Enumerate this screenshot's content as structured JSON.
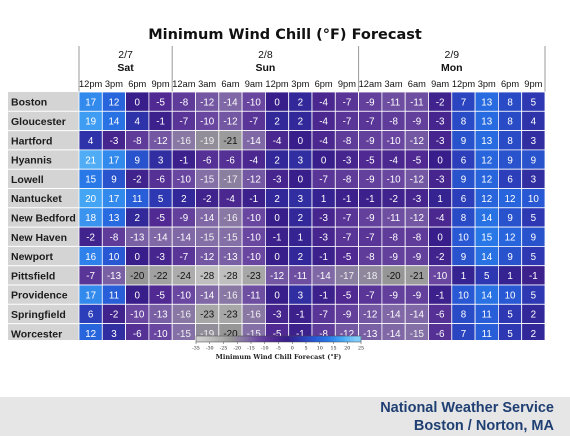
{
  "chart_data": {
    "type": "heatmap",
    "title": "Minimum Wind Chill (°F) Forecast",
    "days": [
      {
        "date": "2/7",
        "name": "Sat",
        "span": 4
      },
      {
        "date": "2/8",
        "name": "Sun",
        "span": 8
      },
      {
        "date": "2/9",
        "name": "Mon",
        "span": 8
      }
    ],
    "times": [
      "12pm",
      "3pm",
      "6pm",
      "9pm",
      "12am",
      "3am",
      "6am",
      "9am",
      "12pm",
      "3pm",
      "6pm",
      "9pm",
      "12am",
      "3am",
      "6am",
      "9am",
      "12pm",
      "3pm",
      "6pm",
      "9pm"
    ],
    "rows": [
      {
        "name": "Boston",
        "values": [
          17,
          12,
          0,
          -5,
          -8,
          -12,
          -14,
          -10,
          0,
          2,
          -4,
          -7,
          -9,
          -11,
          -11,
          -2,
          7,
          13,
          8,
          5
        ]
      },
      {
        "name": "Gloucester",
        "values": [
          19,
          14,
          4,
          -1,
          -7,
          -10,
          -12,
          -7,
          2,
          2,
          -4,
          -7,
          -7,
          -8,
          -9,
          -3,
          8,
          13,
          8,
          4
        ]
      },
      {
        "name": "Hartford",
        "values": [
          4,
          -3,
          -8,
          -12,
          -16,
          -19,
          -21,
          -14,
          -4,
          0,
          -4,
          -8,
          -9,
          -10,
          -12,
          -3,
          9,
          13,
          8,
          3
        ]
      },
      {
        "name": "Hyannis",
        "values": [
          21,
          17,
          9,
          3,
          -1,
          -6,
          -6,
          -4,
          2,
          3,
          0,
          -3,
          -5,
          -4,
          -5,
          0,
          6,
          12,
          9,
          9
        ]
      },
      {
        "name": "Lowell",
        "values": [
          15,
          9,
          -2,
          -6,
          -10,
          -15,
          -17,
          -12,
          -3,
          0,
          -7,
          -8,
          -9,
          -10,
          -12,
          -3,
          9,
          12,
          6,
          3
        ]
      },
      {
        "name": "Nantucket",
        "values": [
          20,
          17,
          11,
          5,
          2,
          -2,
          -4,
          -1,
          2,
          3,
          1,
          -1,
          -1,
          -2,
          -3,
          1,
          6,
          12,
          12,
          10
        ]
      },
      {
        "name": "New Bedford",
        "values": [
          18,
          13,
          2,
          -5,
          -9,
          -14,
          -16,
          -10,
          0,
          2,
          -3,
          -7,
          -9,
          -11,
          -12,
          -4,
          8,
          14,
          9,
          5
        ]
      },
      {
        "name": "New Haven",
        "values": [
          -2,
          -8,
          -13,
          -14,
          -14,
          -15,
          -15,
          -10,
          -1,
          1,
          -3,
          -7,
          -7,
          -8,
          -8,
          0,
          10,
          15,
          12,
          9
        ]
      },
      {
        "name": "Newport",
        "values": [
          16,
          10,
          0,
          -3,
          -7,
          -12,
          -13,
          -10,
          0,
          2,
          -1,
          -5,
          -8,
          -9,
          -9,
          -2,
          9,
          14,
          9,
          5
        ]
      },
      {
        "name": "Pittsfield",
        "values": [
          -7,
          -13,
          -20,
          -22,
          -24,
          -28,
          -28,
          -23,
          -12,
          -11,
          -14,
          -17,
          -18,
          -20,
          -21,
          -10,
          1,
          5,
          1,
          -1
        ]
      },
      {
        "name": "Providence",
        "values": [
          17,
          11,
          0,
          -5,
          -10,
          -14,
          -16,
          -11,
          0,
          3,
          -1,
          -5,
          -7,
          -9,
          -9,
          -1,
          10,
          14,
          10,
          5
        ]
      },
      {
        "name": "Springfield",
        "values": [
          6,
          -2,
          -10,
          -13,
          -16,
          -23,
          -23,
          -16,
          -3,
          -1,
          -7,
          -9,
          -12,
          -14,
          -14,
          -6,
          8,
          11,
          5,
          2
        ]
      },
      {
        "name": "Worcester",
        "values": [
          12,
          3,
          -6,
          -10,
          -15,
          -19,
          -20,
          -15,
          -5,
          -1,
          -8,
          -12,
          -13,
          -14,
          -15,
          -6,
          7,
          11,
          5,
          2
        ]
      }
    ],
    "colorbar": {
      "label": "Minimum Wind Chill Forecast (°F)",
      "ticks": [
        -35,
        -30,
        -25,
        -20,
        -15,
        -10,
        -5,
        0,
        5,
        10,
        15,
        20,
        25
      ],
      "range": [
        -35,
        25
      ]
    }
  },
  "footer": {
    "line1": "National Weather Service",
    "line2": "Boston / Norton, MA"
  }
}
